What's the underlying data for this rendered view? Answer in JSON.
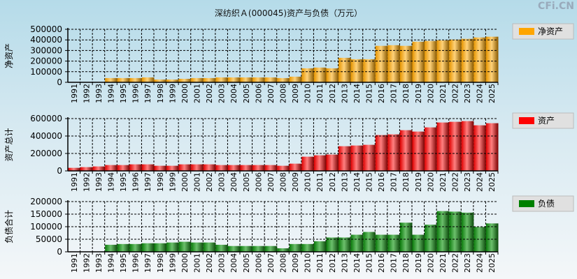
{
  "title": "深纺织Ａ(000045)资产与负债（万元）",
  "watermark": "CFi.CN",
  "chart_data": [
    {
      "type": "bar",
      "ylabel": "净资产",
      "legend": "净资产",
      "legend_position": "right",
      "color": "#ffa500",
      "ylim": [
        0,
        500000
      ],
      "yticks": [
        0,
        100000,
        200000,
        300000,
        400000,
        500000
      ],
      "categories": [
        "1991",
        "1992",
        "1993",
        "1994",
        "1995",
        "1996",
        "1997",
        "1998",
        "1999",
        "2000",
        "2001",
        "2002",
        "2003",
        "2004",
        "2005",
        "2006",
        "2007",
        "2008",
        "2009",
        "2010",
        "2011",
        "2012",
        "2013",
        "2014",
        "2015",
        "2016",
        "2017",
        "2018",
        "2019",
        "2020",
        "2021",
        "2022",
        "2023",
        "2024",
        "2025"
      ],
      "values": [
        null,
        null,
        null,
        40000,
        40000,
        40000,
        46000,
        26000,
        26000,
        33000,
        40000,
        40000,
        46000,
        46000,
        46000,
        46000,
        46000,
        40000,
        53000,
        132000,
        139000,
        132000,
        231000,
        218000,
        218000,
        344000,
        350000,
        344000,
        383000,
        390000,
        396000,
        403000,
        410000,
        423000,
        430000
      ]
    },
    {
      "type": "bar",
      "ylabel": "资产总计",
      "legend": "资产",
      "legend_position": "right",
      "color": "#ff0000",
      "ylim": [
        0,
        600000
      ],
      "yticks": [
        0,
        200000,
        400000,
        600000
      ],
      "categories": [
        "1991",
        "1992",
        "1993",
        "1994",
        "1995",
        "1996",
        "1997",
        "1998",
        "1999",
        "2000",
        "2001",
        "2002",
        "2003",
        "2004",
        "2005",
        "2006",
        "2007",
        "2008",
        "2009",
        "2010",
        "2011",
        "2012",
        "2013",
        "2014",
        "2015",
        "2016",
        "2017",
        "2018",
        "2019",
        "2020",
        "2021",
        "2022",
        "2023",
        "2024",
        "2025"
      ],
      "values": [
        35000,
        43000,
        51000,
        67000,
        67000,
        75000,
        75000,
        59000,
        59000,
        75000,
        75000,
        75000,
        67000,
        67000,
        67000,
        67000,
        67000,
        59000,
        83000,
        163000,
        179000,
        187000,
        283000,
        291000,
        299000,
        411000,
        419000,
        467000,
        451000,
        499000,
        555000,
        563000,
        571000,
        523000,
        547000
      ]
    },
    {
      "type": "bar",
      "ylabel": "负债合计",
      "legend": "负债",
      "legend_position": "right",
      "color": "#008000",
      "ylim": [
        0,
        200000
      ],
      "yticks": [
        0,
        50000,
        100000,
        150000,
        200000
      ],
      "categories": [
        "1991",
        "1992",
        "1993",
        "1994",
        "1995",
        "1996",
        "1997",
        "1998",
        "1999",
        "2000",
        "2001",
        "2002",
        "2003",
        "2004",
        "2005",
        "2006",
        "2007",
        "2008",
        "2009",
        "2010",
        "2011",
        "2012",
        "2013",
        "2014",
        "2015",
        "2016",
        "2017",
        "2018",
        "2019",
        "2020",
        "2021",
        "2022",
        "2023",
        "2024",
        "2025"
      ],
      "values": [
        null,
        null,
        null,
        28000,
        31000,
        31000,
        34000,
        34000,
        37000,
        40000,
        37000,
        37000,
        28000,
        23000,
        23000,
        23000,
        23000,
        14000,
        31000,
        31000,
        42000,
        57000,
        57000,
        68000,
        79000,
        68000,
        68000,
        116000,
        68000,
        108000,
        162000,
        160000,
        156000,
        99000,
        113000
      ]
    }
  ]
}
